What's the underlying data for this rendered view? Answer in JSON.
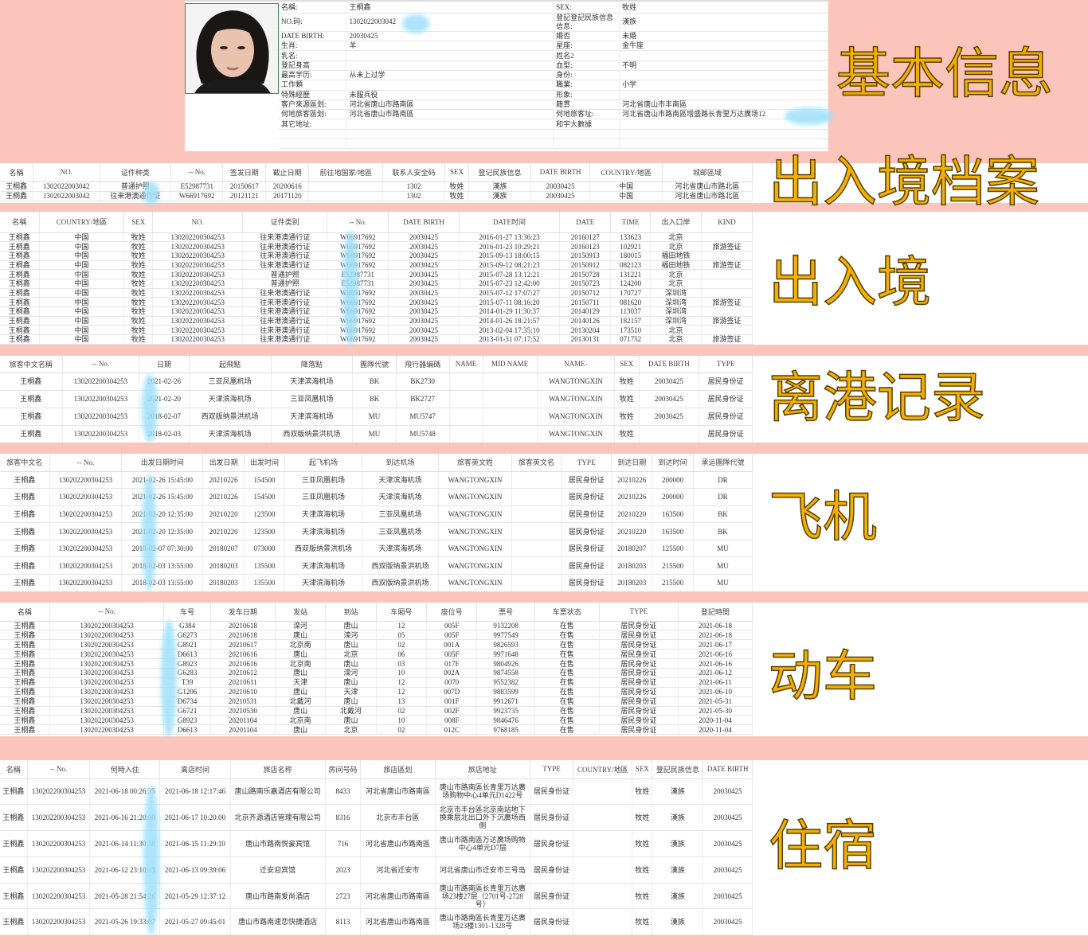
{
  "colors": {
    "background": "#fbc5bb",
    "label_fill": "#f4b000",
    "redaction": "#9fe0fb"
  },
  "basic": {
    "rows": [
      [
        "名稱:",
        "王桐鑫",
        "SEX:",
        "牧姓"
      ],
      [
        "NO.码:",
        "1302022003042",
        "登記登記民族信息信息:",
        "漢族"
      ],
      [
        "DATE BIRTH:",
        "20030425",
        "婚否",
        "未婚"
      ],
      [
        "生肖:",
        "羊",
        "星座:",
        "金牛座"
      ],
      [
        "乳名:",
        "",
        "姓名2",
        ""
      ],
      [
        "登記身高",
        "",
        "血型:",
        "不明"
      ],
      [
        "最高学历:",
        "从未上过学",
        "身份:",
        ""
      ],
      [
        "工作類",
        "",
        "職業:",
        "小学"
      ],
      [
        "特殊經歷",
        "未服兵役",
        "形象:",
        ""
      ],
      [
        "客户來源區划:",
        "河北省唐山市路南區",
        "籍貫",
        "河北省唐山市丰南區"
      ],
      [
        "何地旅客區划:",
        "河北省唐山市路南區",
        "何地旅客址:",
        "河北省唐山市路南區增盛路长青里万达廣场12"
      ],
      [
        "其它地址:",
        "",
        "和宇大數據",
        ""
      ],
      [
        "",
        "",
        "",
        ""
      ],
      [
        "",
        "",
        "",
        ""
      ]
    ]
  },
  "labels": {
    "s0": "基本信息",
    "s1": "出入境档案",
    "s2": "出入境",
    "s3": "离港记录",
    "s4": "飞机",
    "s5": "动车",
    "s6": "住宿"
  },
  "tables": [
    {
      "headers": [
        "名稱",
        "NO.",
        "证件种类",
        "-- No.",
        "签发日期",
        "截止日期",
        "前往地国家/地區",
        "联系人安全码",
        "SEX",
        "登记民族信息",
        "DATE BIRTH",
        "COUNTRY/地區",
        "城邮區域"
      ],
      "rows": [
        [
          "王桐鑫",
          "1302022003042",
          "普通护照",
          "E52987731",
          "20150617",
          "20200616",
          "",
          "1302",
          "牧姓",
          "漢族",
          "20030425",
          "中国",
          "河北省唐山市路北區"
        ],
        [
          "王桐鑫",
          "1302022003042",
          "往来港澳通行证",
          "W66917692",
          "20121121",
          "20171120",
          "",
          "1302",
          "牧姓",
          "漢族",
          "20030425",
          "中国",
          "河北省唐山市路北區"
        ]
      ]
    },
    {
      "headers": [
        "名稱",
        "COUNTRY/地區",
        "SEX",
        "NO.",
        "证件类别",
        "-- No.",
        "DATE BIRTH",
        "DATE时间",
        "DATE",
        "TIME",
        "出入口岸",
        "KIND"
      ],
      "rows": [
        [
          "王桐鑫",
          "中国",
          "牧姓",
          "130202200304253",
          "往来港澳通行证",
          "W66917692",
          "20030425",
          "2016-01-27 13:36:23",
          "20160127",
          "133623",
          "北京",
          ""
        ],
        [
          "王桐鑫",
          "中国",
          "牧姓",
          "130202200304253",
          "往来港澳通行证",
          "W66917692",
          "20030425",
          "2016-01-23 10:29:21",
          "20160123",
          "102921",
          "北京",
          "旅游签证"
        ],
        [
          "王桐鑫",
          "中国",
          "牧姓",
          "130202200304253",
          "往来港澳通行证",
          "W66917692",
          "20030425",
          "2015-09-13 18:00:15",
          "20150913",
          "180015",
          "福田地铁",
          ""
        ],
        [
          "王桐鑫",
          "中国",
          "牧姓",
          "130202200304253",
          "往来港澳通行证",
          "W66917692",
          "20030425",
          "2015-09-12 08:21:23",
          "20150912",
          "082123",
          "福田地铁",
          "旅游签证"
        ],
        [
          "王桐鑫",
          "中国",
          "牧姓",
          "130202200304253",
          "普通护照",
          "E52987731",
          "20030425",
          "2015-07-28 13:12:21",
          "20150728",
          "131221",
          "北京",
          ""
        ],
        [
          "王桐鑫",
          "中国",
          "牧姓",
          "130202200304253",
          "普通护照",
          "E52987731",
          "20030425",
          "2015-07-23 12:42:00",
          "20150723",
          "124200",
          "北京",
          ""
        ],
        [
          "王桐鑫",
          "中国",
          "牧姓",
          "130202200304253",
          "往来港澳通行证",
          "W66917692",
          "20030425",
          "2015-07-12 17:07:27",
          "20150712",
          "170727",
          "深圳湾",
          ""
        ],
        [
          "王桐鑫",
          "中国",
          "牧姓",
          "130202200304253",
          "往来港澳通行证",
          "W66917692",
          "20030425",
          "2015-07-11 08:16:20",
          "20150711",
          "081620",
          "深圳湾",
          "旅游签证"
        ],
        [
          "王桐鑫",
          "中国",
          "牧姓",
          "130202200304253",
          "往来港澳通行证",
          "W66917692",
          "20030425",
          "2014-01-29 11:30:37",
          "20140129",
          "113037",
          "深圳湾",
          ""
        ],
        [
          "王桐鑫",
          "中国",
          "牧姓",
          "130202200304253",
          "往来港澳通行证",
          "W66917692",
          "20030425",
          "2014-01-26 18:21:57",
          "20140126",
          "182157",
          "深圳湾",
          "旅游签证"
        ],
        [
          "王桐鑫",
          "中国",
          "牧姓",
          "130202200304253",
          "往来港澳通行证",
          "W66917692",
          "20030425",
          "2013-02-04 17:35:10",
          "20130204",
          "173510",
          "北京",
          ""
        ],
        [
          "王桐鑫",
          "中国",
          "牧姓",
          "130202200304253",
          "往来港澳通行证",
          "W66917692",
          "20030425",
          "2013-01-31 07:17:52",
          "20130131",
          "071752",
          "北京",
          "旅游签证"
        ]
      ]
    },
    {
      "headers": [
        "旅客中文名稱",
        "-- No.",
        "日期",
        "起飛點",
        "降落點",
        "團隊代號",
        "飛行器编碼",
        "NAME",
        "MID NAME",
        "NAME-",
        "SEX",
        "DATE BIRTH",
        "TYPE"
      ],
      "rows": [
        [
          "王桐鑫",
          "130202200304253",
          "2021-02-26",
          "三亚凤凰机场",
          "天津滨海机场",
          "BK",
          "BK2730",
          "",
          "",
          "WANGTONGXIN",
          "牧姓",
          "20030425",
          "居民身份证"
        ],
        [
          "王桐鑫",
          "130202200304253",
          "2021-02-20",
          "天津滨海机场",
          "三亚凤凰机场",
          "BK",
          "BK2727",
          "",
          "",
          "WANGTONGXIN",
          "牧姓",
          "20030425",
          "居民身份证"
        ],
        [
          "王桐鑫",
          "130202200304253",
          "2018-02-07",
          "西双版纳景洪机场",
          "天津滨海机场",
          "MU",
          "MU5747",
          "",
          "",
          "WANGTONGXIN",
          "牧姓",
          "20030425",
          "居民身份证"
        ],
        [
          "王桐鑫",
          "130202200304253",
          "2018-02-03",
          "天津滨海机场",
          "西双版纳景洪机场",
          "MU",
          "MU5748",
          "",
          "",
          "WANGTONGXIN",
          "牧姓",
          "",
          "居民身份证"
        ]
      ]
    },
    {
      "headers": [
        "旅客中文名",
        "-- No.",
        "出发日期时间",
        "出发日期",
        "出发时间",
        "起飞机场",
        "到达机场",
        "旅客英文姓",
        "旅客英文名",
        "TYPE",
        "到达日期",
        "到达时间",
        "承运團隊代號"
      ],
      "rows": [
        [
          "王桐鑫",
          "130202200304253",
          "2021-02-26 15:45:00",
          "20210226",
          "154500",
          "三亚凤凰机场",
          "天津滨海机场",
          "WANGTONGXIN",
          "",
          "居民身份证",
          "20210226",
          "200000",
          "DR"
        ],
        [
          "王桐鑫",
          "130202200304253",
          "2021-02-26 15:45:00",
          "20210226",
          "154500",
          "三亚凤凰机场",
          "天津滨海机场",
          "WANGTONGXIN",
          "",
          "居民身份证",
          "20210226",
          "200000",
          "DR"
        ],
        [
          "王桐鑫",
          "130202200304253",
          "2021-02-20 12:35:00",
          "20210220",
          "123500",
          "天津滨海机场",
          "三亚凤凰机场",
          "WANGTONGXIN",
          "",
          "居民身份证",
          "20210220",
          "163500",
          "BK"
        ],
        [
          "王桐鑫",
          "130202200304253",
          "2021-02-20 12:35:00",
          "20210220",
          "123500",
          "天津滨海机场",
          "三亚凤凰机场",
          "WANGTONGXIN",
          "",
          "居民身份证",
          "20210220",
          "163500",
          "BK"
        ],
        [
          "王桐鑫",
          "130202200304253",
          "2018-02-07 07:30:00",
          "20180207",
          "073000",
          "西双版纳景洪机场",
          "天津滨海机场",
          "WANGTONGXIN",
          "",
          "居民身份证",
          "20180207",
          "125500",
          "MU"
        ],
        [
          "王桐鑫",
          "130202200304253",
          "2018-02-03 13:55:00",
          "20180203",
          "135500",
          "天津滨海机场",
          "西双版纳景洪机场",
          "WANGTONGXIN",
          "",
          "居民身份证",
          "20180203",
          "215500",
          "MU"
        ],
        [
          "王桐鑫",
          "130202200304253",
          "2018-02-03 13:55:00",
          "20180203",
          "135500",
          "天津滨海机场",
          "西双版纳景洪机场",
          "WANGTONGXIN",
          "",
          "居民身份证",
          "20180203",
          "215500",
          "MU"
        ]
      ]
    },
    {
      "headers": [
        "名稱",
        "-- No.",
        "车号",
        "发车日期",
        "发站",
        "到站",
        "车厢号",
        "座位号",
        "票号",
        "车票状态",
        "TYPE",
        "登記時間"
      ],
      "rows": [
        [
          "王桐鑫",
          "130202200304253",
          "G384",
          "20210618",
          "滦河",
          "唐山",
          "12",
          "005F",
          "9132208",
          "在售",
          "居民身份证",
          "2021-06-18"
        ],
        [
          "王桐鑫",
          "130202200304253",
          "G6273",
          "20210618",
          "唐山",
          "滦河",
          "05",
          "005F",
          "9977549",
          "在售",
          "居民身份证",
          "2021-06-18"
        ],
        [
          "王桐鑫",
          "130202200304253",
          "G8921",
          "20210617",
          "北京南",
          "唐山",
          "02",
          "001A",
          "9826593",
          "在售",
          "居民身份证",
          "2021-06-17"
        ],
        [
          "王桐鑫",
          "130202200304253",
          "D6613",
          "20210616",
          "唐山",
          "北京",
          "06",
          "005F",
          "9971648",
          "在售",
          "居民身份证",
          "2021-06-16"
        ],
        [
          "王桐鑫",
          "130202200304253",
          "G8923",
          "20210616",
          "北京南",
          "唐山",
          "03",
          "017F",
          "9804926",
          "在售",
          "居民身份证",
          "2021-06-16"
        ],
        [
          "王桐鑫",
          "130202200304253",
          "G6283",
          "20210612",
          "唐山",
          "滦河",
          "10",
          "002A",
          "9874558",
          "在售",
          "居民身份证",
          "2021-06-12"
        ],
        [
          "王桐鑫",
          "130202200304253",
          "T39",
          "20210611",
          "天津",
          "唐山",
          "12",
          "0070",
          "9552382",
          "在售",
          "居民身份证",
          "2021-06-11"
        ],
        [
          "王桐鑫",
          "130202200304253",
          "G1206",
          "20210610",
          "唐山",
          "天津",
          "12",
          "007D",
          "9883599",
          "在售",
          "居民身份证",
          "2021-06-10"
        ],
        [
          "王桐鑫",
          "130202200304253",
          "D6734",
          "20210531",
          "北戴河",
          "唐山",
          "13",
          "001F",
          "9912671",
          "在售",
          "居民身份证",
          "2021-05-31"
        ],
        [
          "王桐鑫",
          "130202200304253",
          "G6721",
          "20210530",
          "唐山",
          "北戴河",
          "02",
          "002F",
          "9923735",
          "在售",
          "居民身份证",
          "2021-05-30"
        ],
        [
          "王桐鑫",
          "130202200304253",
          "G8923",
          "20201104",
          "北京南",
          "唐山",
          "10",
          "008F",
          "9846476",
          "在售",
          "居民身份证",
          "2020-11-04"
        ],
        [
          "王桐鑫",
          "130202200304253",
          "D6613",
          "20201104",
          "唐山",
          "北京",
          "02",
          "012C",
          "9768185",
          "在售",
          "居民身份证",
          "2020-11-04"
        ]
      ]
    },
    {
      "headers": [
        "名稱",
        "-- No.",
        "何時入住",
        "离店时间",
        "旅店名称",
        "房间号码",
        "旅店區划",
        "旅店地址",
        "TYPE",
        "COUNTRY/地區",
        "SEX",
        "登記民族信息",
        "DATE BIRTH"
      ],
      "rows": [
        [
          "王桐鑫",
          "130202200304253",
          "2021-06-18 00:26:35",
          "2021-06-18 12:17:46",
          "唐山路南乐嘉酒店有限公司",
          "8433",
          "河北省唐山市路南區",
          "唐山市路南區长青里万达廣场购物中心4单元D1422号",
          "居民身份证",
          "",
          "牧姓",
          "漢族",
          "20030425"
        ],
        [
          "王桐鑫",
          "130202200304253",
          "2021-06-16 21:20:00",
          "2021-06-17 10:20:00",
          "北京齐源酒店管理有限公司",
          "8316",
          "北京市丰台區",
          "北京市丰台區北京南站地下换乘层北出口外下沉廣场西侧",
          "居民身份证",
          "",
          "牧姓",
          "漢族",
          "20030425"
        ],
        [
          "王桐鑫",
          "130202200304253",
          "2021-06-14 11:30:18",
          "2021-06-15 11:29:10",
          "唐山市路南悦豪宾馆",
          "716",
          "河北省唐山市路南區",
          "唐山市路南區万达廣场购物中心4单元D7层",
          "居民身份证",
          "",
          "牧姓",
          "漢族",
          "20030425"
        ],
        [
          "王桐鑫",
          "130202200304253",
          "2021-06-12 23:10:13",
          "2021-06-13 09:39:06",
          "迁安迎宾馆",
          "2023",
          "河北省迁安市",
          "河北省唐山市迁安市三号岛",
          "居民身份证",
          "",
          "牧姓",
          "漢族",
          "20030425"
        ],
        [
          "王桐鑫",
          "130202200304253",
          "2021-05-28 21:54:26",
          "2021-05-29 12:37:12",
          "唐山市路南爱尚酒店",
          "2723",
          "河北省唐山市路南區",
          "唐山市路南區长青里万达廣场23楼27层（2701号-2728号）",
          "居民身份证",
          "",
          "牧姓",
          "漢族",
          "20030425"
        ],
        [
          "王桐鑫",
          "130202200304253",
          "2021-05-26 19:33:07",
          "2021-05-27 09:45:01",
          "唐山市路南速恋快捷酒店",
          "8113",
          "河北省唐山市路南區",
          "唐山市路南區长青里万达廣场23楼1301-1328号",
          "居民身份证",
          "",
          "牧姓",
          "漢族",
          "20030425"
        ]
      ]
    }
  ]
}
